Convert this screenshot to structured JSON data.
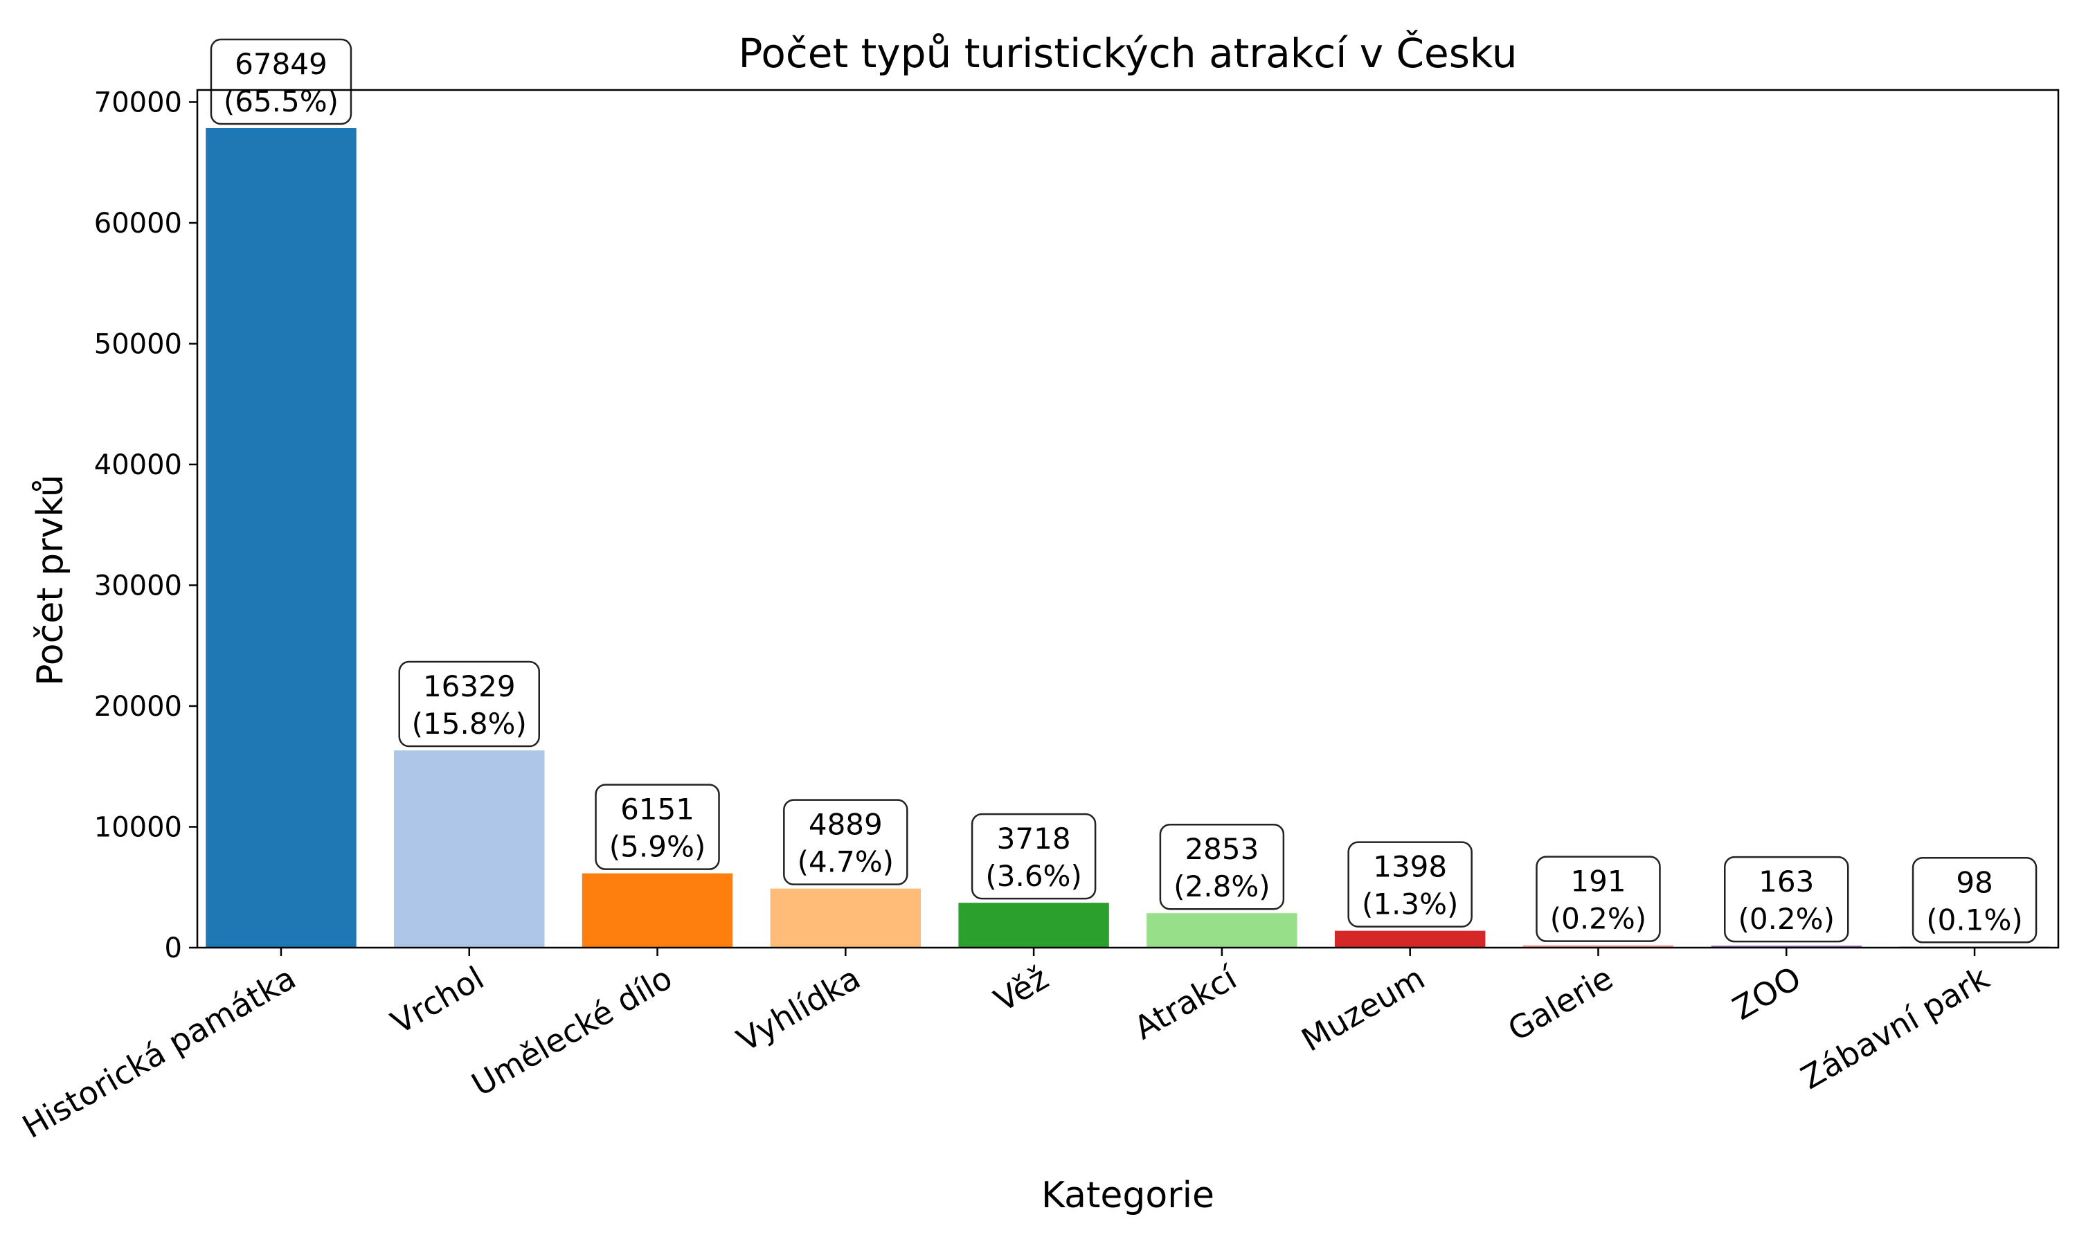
{
  "chart_data": {
    "type": "bar",
    "title": "Počet typů turistických atrakcí v Česku",
    "xlabel": "Kategorie",
    "ylabel": "Počet prvků",
    "ylim": [
      0,
      71000
    ],
    "yticks": [
      0,
      10000,
      20000,
      30000,
      40000,
      50000,
      60000,
      70000
    ],
    "grid": false,
    "categories": [
      "Historická památka",
      "Vrchol",
      "Umělecké dílo",
      "Vyhlídka",
      "Věž",
      "Atrakcí",
      "Muzeum",
      "Galerie",
      "ZOO",
      "Zábavní park"
    ],
    "values": [
      67849,
      16329,
      6151,
      4889,
      3718,
      2853,
      1398,
      191,
      163,
      98
    ],
    "value_labels": [
      "67849",
      "16329",
      "6151",
      "4889",
      "3718",
      "2853",
      "1398",
      "191",
      "163",
      "98"
    ],
    "percent_labels": [
      "(65.5%)",
      "(15.8%)",
      "(5.9%)",
      "(4.7%)",
      "(3.6%)",
      "(2.8%)",
      "(1.3%)",
      "(0.2%)",
      "(0.2%)",
      "(0.1%)"
    ],
    "colors": [
      "#1f77b4",
      "#aec7e8",
      "#ff7f0e",
      "#ffbb78",
      "#2ca02c",
      "#98df8a",
      "#d62728",
      "#ff9896",
      "#9467bd",
      "#c5b0d5"
    ]
  }
}
